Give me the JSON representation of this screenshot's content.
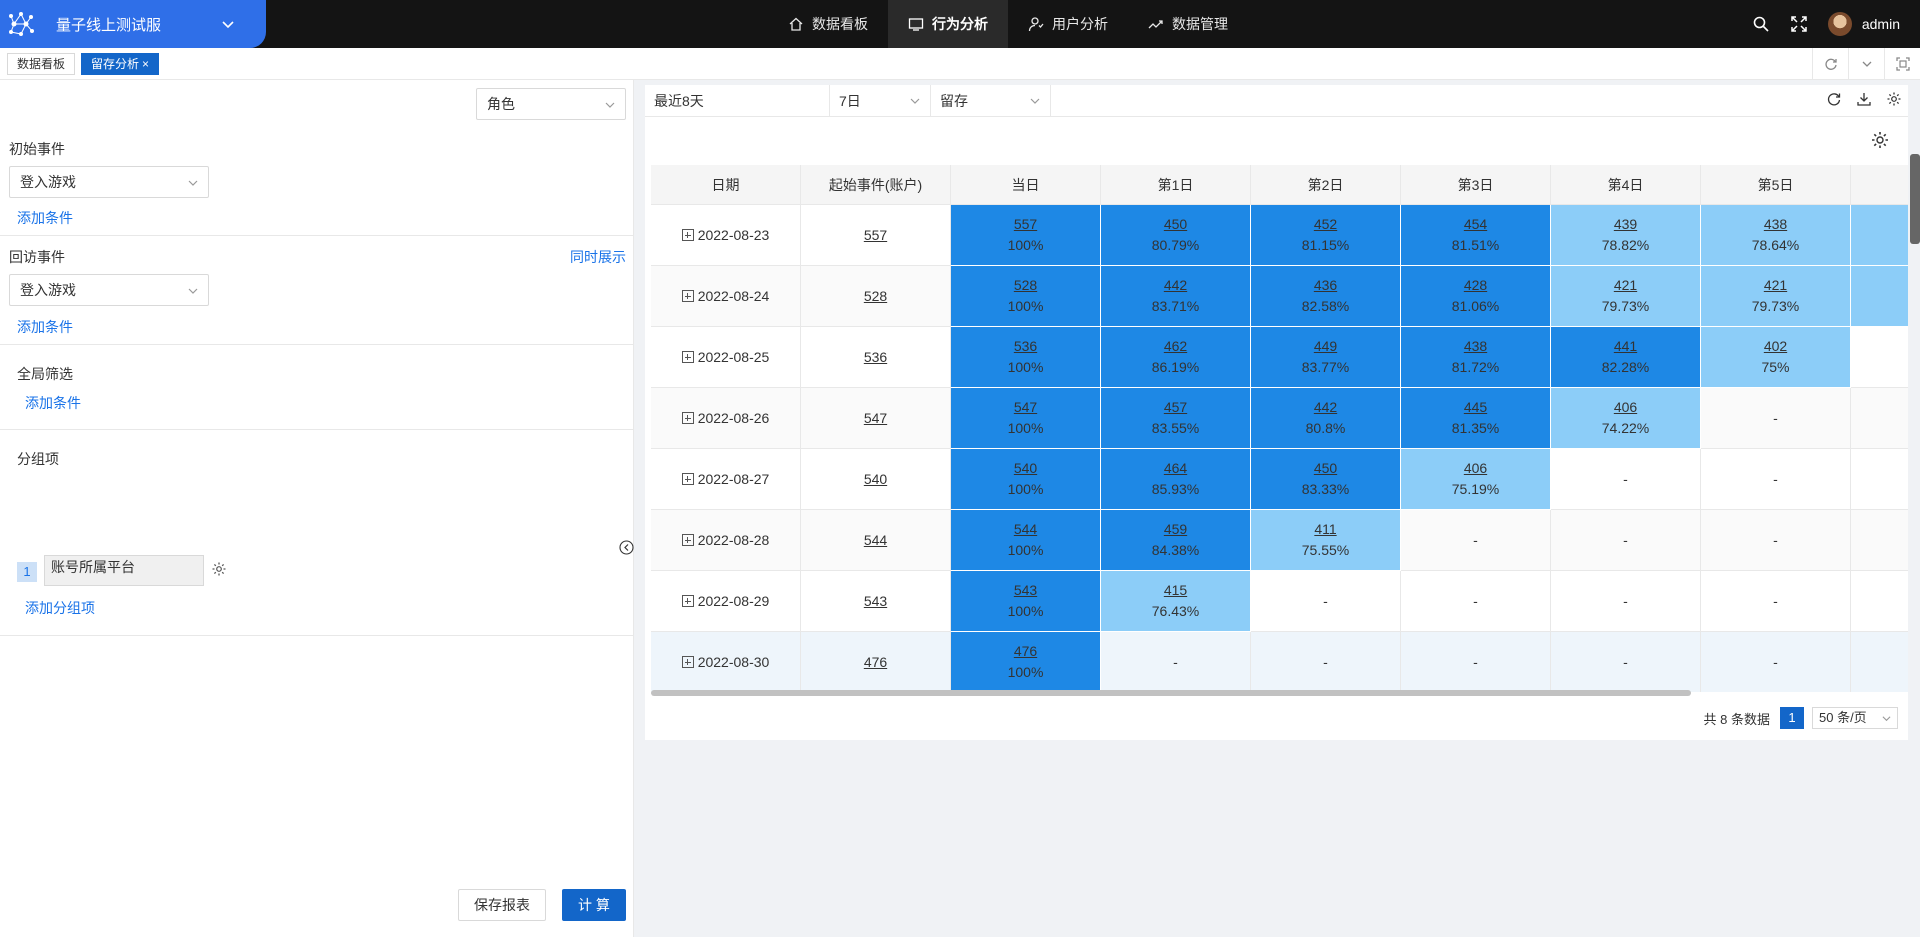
{
  "app": {
    "title": "量子线上测试服"
  },
  "nav": [
    {
      "label": "数据看板",
      "icon": "home-icon",
      "active": false
    },
    {
      "label": "行为分析",
      "icon": "monitor-icon",
      "active": true
    },
    {
      "label": "用户分析",
      "icon": "user-icon",
      "active": false
    },
    {
      "label": "数据管理",
      "icon": "trend-icon",
      "active": false
    }
  ],
  "user": {
    "name": "admin"
  },
  "tabs": [
    {
      "label": "数据看板",
      "active": false
    },
    {
      "label": "留存分析",
      "active": true,
      "close": "×"
    }
  ],
  "left": {
    "role_select": "角色",
    "initial_event_label": "初始事件",
    "initial_event_value": "登入游戏",
    "add_condition": "添加条件",
    "return_event_label": "回访事件",
    "show_together": "同时展示",
    "return_event_value": "登入游戏",
    "global_filter_label": "全局筛选",
    "group_label": "分组项",
    "group_index": "1",
    "group_value": "账号所属平台",
    "add_group": "添加分组项",
    "save_button": "保存报表",
    "calc_button": "计 算"
  },
  "filters": {
    "range": "最近8天",
    "period": "7日",
    "type": "留存"
  },
  "table": {
    "headers": [
      "日期",
      "起始事件(账户)",
      "当日",
      "第1日",
      "第2日",
      "第3日",
      "第4日",
      "第5日"
    ],
    "rows": [
      {
        "date": "2022-08-23",
        "start": "557",
        "days": [
          [
            "557",
            "100%",
            "dark"
          ],
          [
            "450",
            "80.79%",
            "dark"
          ],
          [
            "452",
            "81.15%",
            "dark"
          ],
          [
            "454",
            "81.51%",
            "dark"
          ],
          [
            "439",
            "78.82%",
            "light"
          ],
          [
            "438",
            "78.64%",
            "light"
          ]
        ],
        "tail": "light"
      },
      {
        "date": "2022-08-24",
        "start": "528",
        "days": [
          [
            "528",
            "100%",
            "dark"
          ],
          [
            "442",
            "83.71%",
            "dark"
          ],
          [
            "436",
            "82.58%",
            "dark"
          ],
          [
            "428",
            "81.06%",
            "dark"
          ],
          [
            "421",
            "79.73%",
            "light"
          ],
          [
            "421",
            "79.73%",
            "light"
          ]
        ],
        "tail": "light"
      },
      {
        "date": "2022-08-25",
        "start": "536",
        "days": [
          [
            "536",
            "100%",
            "dark"
          ],
          [
            "462",
            "86.19%",
            "dark"
          ],
          [
            "449",
            "83.77%",
            "dark"
          ],
          [
            "438",
            "81.72%",
            "dark"
          ],
          [
            "441",
            "82.28%",
            "dark"
          ],
          [
            "402",
            "75%",
            "light"
          ]
        ],
        "tail": "none"
      },
      {
        "date": "2022-08-26",
        "start": "547",
        "days": [
          [
            "547",
            "100%",
            "dark"
          ],
          [
            "457",
            "83.55%",
            "dark"
          ],
          [
            "442",
            "80.8%",
            "dark"
          ],
          [
            "445",
            "81.35%",
            "dark"
          ],
          [
            "406",
            "74.22%",
            "light"
          ],
          [
            "-",
            "",
            "none"
          ]
        ],
        "tail": "none"
      },
      {
        "date": "2022-08-27",
        "start": "540",
        "days": [
          [
            "540",
            "100%",
            "dark"
          ],
          [
            "464",
            "85.93%",
            "dark"
          ],
          [
            "450",
            "83.33%",
            "dark"
          ],
          [
            "406",
            "75.19%",
            "light"
          ],
          [
            "-",
            "",
            "none"
          ],
          [
            "-",
            "",
            "none"
          ]
        ],
        "tail": "none"
      },
      {
        "date": "2022-08-28",
        "start": "544",
        "days": [
          [
            "544",
            "100%",
            "dark"
          ],
          [
            "459",
            "84.38%",
            "dark"
          ],
          [
            "411",
            "75.55%",
            "light"
          ],
          [
            "-",
            "",
            "none"
          ],
          [
            "-",
            "",
            "none"
          ],
          [
            "-",
            "",
            "none"
          ]
        ],
        "tail": "none"
      },
      {
        "date": "2022-08-29",
        "start": "543",
        "days": [
          [
            "543",
            "100%",
            "dark"
          ],
          [
            "415",
            "76.43%",
            "light"
          ],
          [
            "-",
            "",
            "none"
          ],
          [
            "-",
            "",
            "none"
          ],
          [
            "-",
            "",
            "none"
          ],
          [
            "-",
            "",
            "none"
          ]
        ],
        "tail": "none"
      },
      {
        "date": "2022-08-30",
        "start": "476",
        "days": [
          [
            "476",
            "100%",
            "dark"
          ],
          [
            "-",
            "",
            "none"
          ],
          [
            "-",
            "",
            "none"
          ],
          [
            "-",
            "",
            "none"
          ],
          [
            "-",
            "",
            "none"
          ],
          [
            "-",
            "",
            "none"
          ]
        ],
        "tail": "none"
      }
    ]
  },
  "pager": {
    "total": "共 8 条数据",
    "page": "1",
    "page_size": "50 条/页"
  },
  "colors": {
    "primary": "#1366c9",
    "dark_cell": "#1e88e5",
    "light_cell": "#8ccdf8",
    "brand": "#2f6fe8"
  }
}
